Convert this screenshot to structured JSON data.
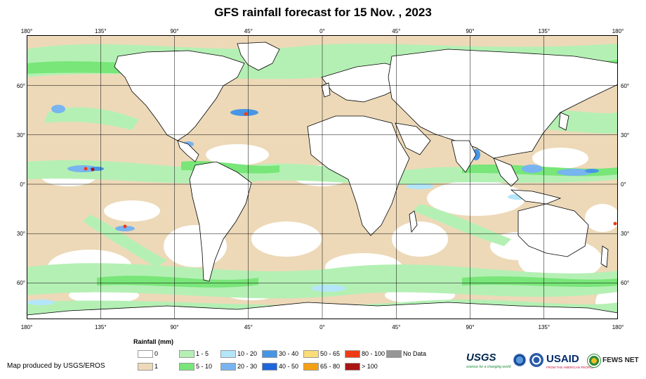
{
  "title": "GFS rainfall forecast for 15 Nov. , 2023",
  "axes": {
    "lon_labels": [
      "180°",
      "135°",
      "90°",
      "45°",
      "0°",
      "45°",
      "90°",
      "135°",
      "180°"
    ],
    "lat_labels": [
      "60°",
      "30°",
      "0°",
      "30°",
      "60°"
    ]
  },
  "legend": {
    "title": "Rainfall (mm)",
    "items": [
      {
        "label": "0",
        "color": "#ffffff"
      },
      {
        "label": "1",
        "color": "#edd9b8"
      },
      {
        "label": "1 - 5",
        "color": "#b4f0b4"
      },
      {
        "label": "5 - 10",
        "color": "#78e678"
      },
      {
        "label": "10 - 20",
        "color": "#b4e6fa"
      },
      {
        "label": "20 - 30",
        "color": "#78b4f0"
      },
      {
        "label": "30 - 40",
        "color": "#4696e6"
      },
      {
        "label": "40 - 50",
        "color": "#1e64dc"
      },
      {
        "label": "50 - 65",
        "color": "#fadc78"
      },
      {
        "label": "65 - 80",
        "color": "#f5a014"
      },
      {
        "label": "80 - 100",
        "color": "#f03c14"
      },
      {
        "label": "> 100",
        "color": "#aa1414"
      },
      {
        "label": "No Data",
        "color": "#969696"
      }
    ]
  },
  "credit": "Map produced by USGS/EROS",
  "logos": {
    "usgs": "USGS",
    "usgs_tagline": "science for a changing world",
    "usaid": "USAID",
    "usaid_tagline": "FROM THE AMERICAN PEOPLE",
    "fews": "FEWS NET"
  }
}
